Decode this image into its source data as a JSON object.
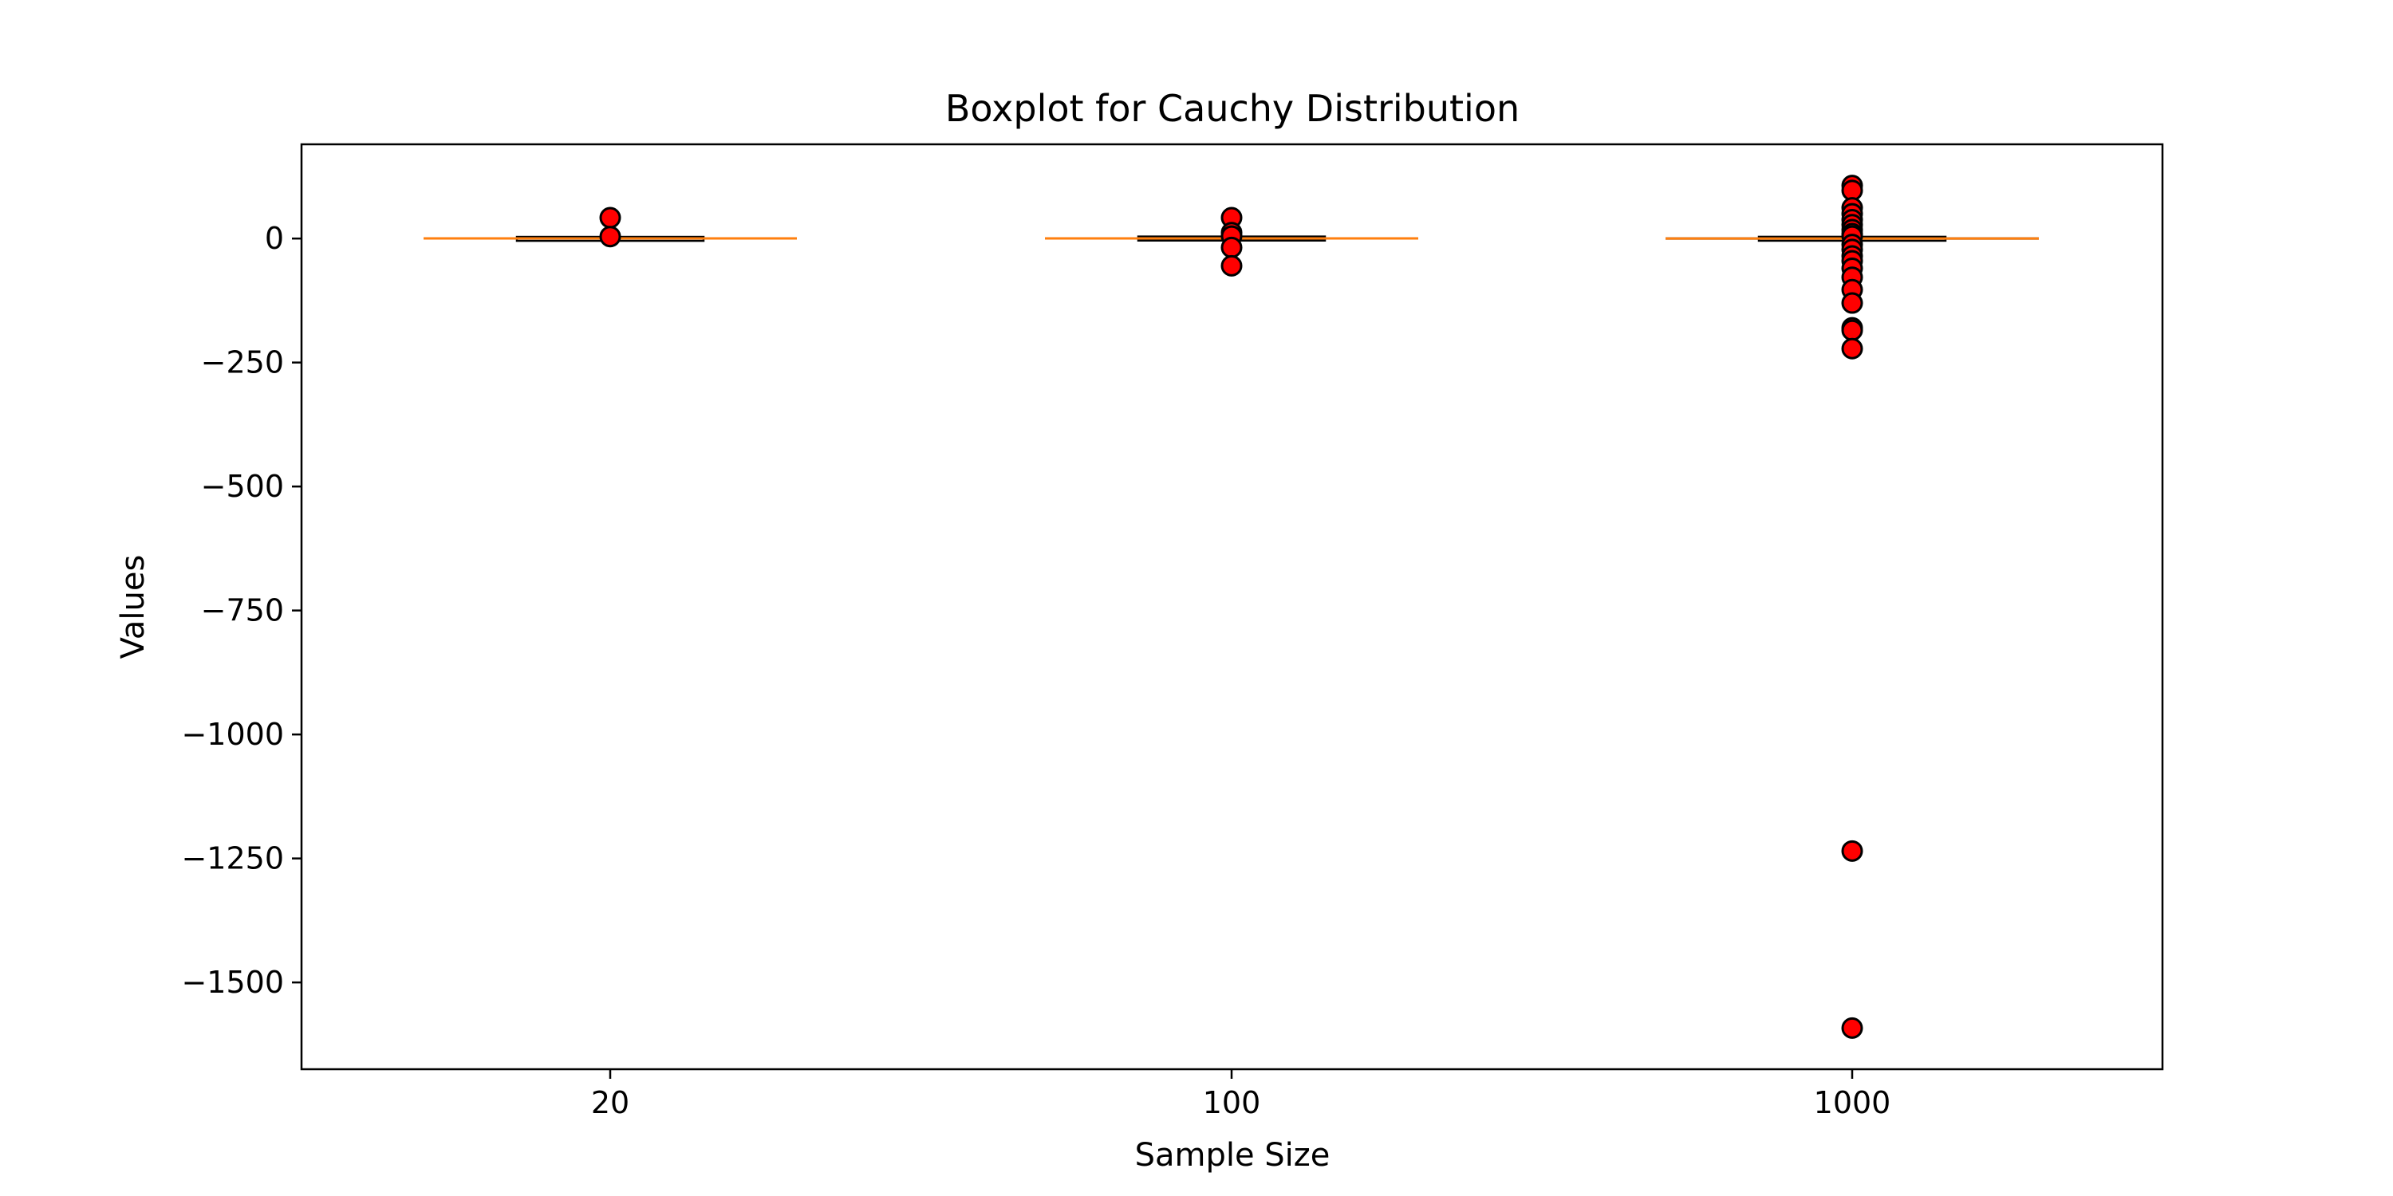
{
  "chart_data": {
    "type": "boxplot",
    "title": "Boxplot for Cauchy Distribution",
    "xlabel": "Sample Size",
    "ylabel": "Values",
    "categories": [
      "20",
      "100",
      "1000"
    ],
    "ylim": [
      -1675,
      190
    ],
    "yticks": [
      0,
      -250,
      -500,
      -750,
      -1000,
      -1250,
      -1500
    ],
    "ytick_labels": [
      "0",
      "−250",
      "−500",
      "−750",
      "−1000",
      "−1250",
      "−1500"
    ],
    "grid": false,
    "colors": {
      "box_edge": "#000000",
      "box_fill": "#ffffff",
      "median": "#ff7f0e",
      "outlier_fill": "#ff0000",
      "outlier_edge": "#000000"
    },
    "boxes": [
      {
        "category": "20",
        "q1": -1.5,
        "median": 0.3,
        "q3": 1.8,
        "whisker_low": -4,
        "whisker_high": 4,
        "outliers": [
          42,
          4
        ]
      },
      {
        "category": "100",
        "q1": -2.5,
        "median": 0.2,
        "q3": 2.5,
        "whisker_low": -5,
        "whisker_high": 5,
        "outliers": [
          42,
          12,
          5,
          -18,
          -55
        ]
      },
      {
        "category": "1000",
        "q1": -2,
        "median": 0.1,
        "q3": 2,
        "whisker_low": -5,
        "whisker_high": 5,
        "outliers": [
          107,
          97,
          62,
          50,
          38,
          28,
          18,
          10,
          5,
          -12,
          -22,
          -35,
          -45,
          -60,
          -78,
          -103,
          -130,
          -180,
          -185,
          -222,
          -1235,
          -1592
        ]
      }
    ]
  }
}
